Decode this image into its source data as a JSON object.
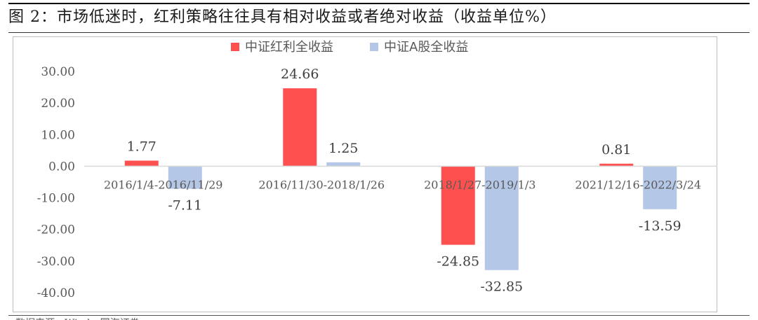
{
  "page": {
    "title": "图 2：市场低迷时，红利策略往往具有相对收益或者绝对收益（收益单位%）",
    "source_fragment": "数据来源：Wind，国海证券"
  },
  "colors": {
    "series1": "#ff5050",
    "series2": "#b4c7e7",
    "axis": "#d9d9d9"
  },
  "chart_data": {
    "type": "bar",
    "title": "",
    "xlabel": "",
    "ylabel": "",
    "ylim": [
      -40,
      30
    ],
    "ytick_step": 10,
    "ytick_format": "0.00",
    "legend_position": "top",
    "grid": false,
    "categories": [
      "2016/1/4-2016/11/29",
      "2016/11/30-2018/1/26",
      "2018/1/27-2019/1/3",
      "2021/12/16-2022/3/24"
    ],
    "series": [
      {
        "name": "中证红利全收益",
        "values": [
          1.77,
          24.66,
          -24.85,
          0.81
        ]
      },
      {
        "name": "中证A股全收益",
        "values": [
          -7.11,
          1.25,
          -32.85,
          -13.59
        ]
      }
    ]
  }
}
